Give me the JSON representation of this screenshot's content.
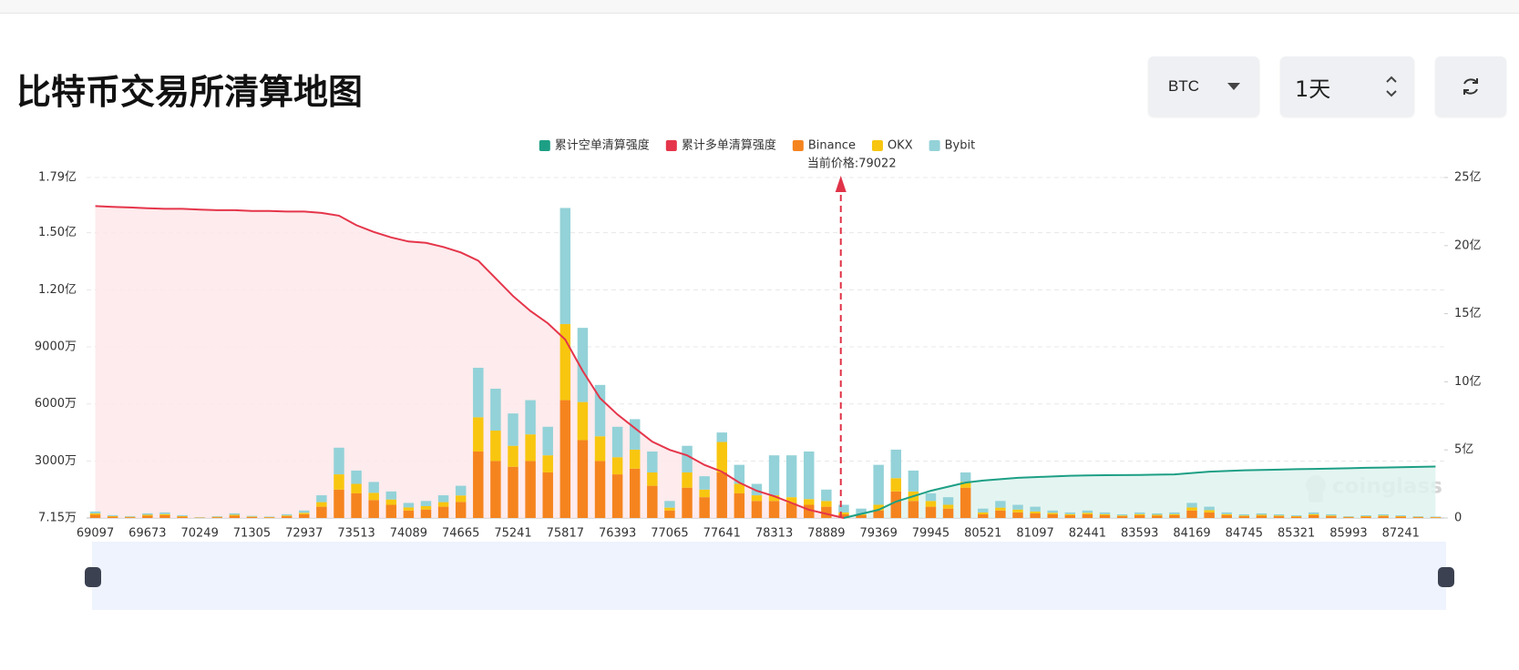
{
  "header": {
    "title": "比特币交易所清算地图"
  },
  "controls": {
    "coin": "BTC",
    "period": "1天"
  },
  "chart_data": {
    "type": "bar",
    "stacked": true,
    "watermark": "coinglass",
    "annotation": {
      "text": "当前价格:79022",
      "x": 79022,
      "color": "#e03347"
    },
    "grid": true,
    "ylim": [
      7.15,
      17900
    ],
    "yticks": [
      {
        "value": 7.15,
        "label": "7.15万"
      },
      {
        "value": 3000,
        "label": "3000万"
      },
      {
        "value": 6000,
        "label": "6000万"
      },
      {
        "value": 9000,
        "label": "9000万"
      },
      {
        "value": 12000,
        "label": "1.20亿"
      },
      {
        "value": 15000,
        "label": "1.50亿"
      },
      {
        "value": 17900,
        "label": "1.79亿"
      }
    ],
    "y2lim": [
      0,
      25
    ],
    "y2ticks": [
      0,
      {
        "value": 5,
        "label": "5亿"
      },
      {
        "value": 10,
        "label": "10亿"
      },
      {
        "value": 15,
        "label": "15亿"
      },
      {
        "value": 20,
        "label": "20亿"
      },
      {
        "value": 25,
        "label": "25亿"
      }
    ],
    "categories": [
      "69097",
      null,
      null,
      "69673",
      null,
      null,
      "70249",
      null,
      null,
      "71305",
      null,
      null,
      "72937",
      null,
      null,
      "73513",
      null,
      null,
      "74089",
      null,
      null,
      "74665",
      null,
      null,
      "75241",
      null,
      null,
      "75817",
      null,
      null,
      "76393",
      null,
      null,
      "77065",
      null,
      null,
      "77641",
      null,
      null,
      "78313",
      null,
      null,
      "78889",
      null,
      null,
      "79369",
      null,
      null,
      "79945",
      null,
      null,
      "80521",
      null,
      null,
      "81097",
      null,
      null,
      "82441",
      null,
      null,
      "83593",
      null,
      null,
      "84169",
      null,
      null,
      "84745",
      null,
      null,
      "85321",
      null,
      null,
      "85993",
      null,
      null,
      "87241",
      null,
      null
    ],
    "series": [
      {
        "name": "累计空单清算强度",
        "type": "line",
        "axis": "y2",
        "color": "#1d9f85",
        "area": "#dff3ee",
        "values": [
          null,
          null,
          null,
          null,
          null,
          null,
          null,
          null,
          null,
          null,
          null,
          null,
          null,
          null,
          null,
          null,
          null,
          null,
          null,
          null,
          null,
          null,
          null,
          null,
          null,
          null,
          null,
          null,
          null,
          null,
          null,
          null,
          null,
          null,
          null,
          null,
          null,
          null,
          null,
          null,
          null,
          null,
          null,
          0,
          0.3,
          0.6,
          1.2,
          1.6,
          2.0,
          2.3,
          2.6,
          2.75,
          2.85,
          2.95,
          3.0,
          3.05,
          3.1,
          3.12,
          3.14,
          3.15,
          3.16,
          3.18,
          3.2,
          3.3,
          3.4,
          3.45,
          3.5,
          3.52,
          3.55,
          3.58,
          3.6,
          3.62,
          3.65,
          3.68,
          3.7,
          3.72,
          3.75,
          3.78
        ]
      },
      {
        "name": "累计多单清算强度",
        "type": "line",
        "axis": "y2",
        "color": "#e5354a",
        "area": "#fde8ea",
        "values": [
          22.9,
          22.85,
          22.8,
          22.75,
          22.7,
          22.7,
          22.65,
          22.6,
          22.6,
          22.55,
          22.55,
          22.5,
          22.5,
          22.4,
          22.2,
          21.5,
          21.0,
          20.6,
          20.3,
          20.2,
          19.9,
          19.5,
          18.9,
          17.6,
          16.3,
          15.2,
          14.3,
          13.1,
          10.8,
          8.8,
          7.6,
          6.6,
          5.6,
          5.0,
          4.6,
          3.9,
          3.4,
          2.6,
          2.0,
          1.6,
          1.1,
          0.6,
          0.3,
          0,
          null,
          null,
          null,
          null,
          null,
          null,
          null,
          null,
          null,
          null,
          null,
          null,
          null,
          null,
          null,
          null,
          null,
          null,
          null,
          null,
          null,
          null,
          null,
          null,
          null,
          null,
          null,
          null,
          null,
          null,
          null,
          null,
          null,
          null
        ]
      },
      {
        "name": "Binance",
        "type": "bar",
        "color": "#f5841f",
        "values": [
          175,
          75,
          50,
          125,
          150,
          75,
          25,
          50,
          125,
          60,
          40,
          100,
          200,
          600,
          1500,
          1300,
          950,
          700,
          400,
          450,
          600,
          850,
          3500,
          3000,
          2700,
          3000,
          2400,
          6200,
          4100,
          3000,
          2300,
          2600,
          1700,
          400,
          1600,
          1100,
          2400,
          1300,
          900,
          900,
          800,
          700,
          600,
          200,
          150,
          400,
          1400,
          900,
          600,
          500,
          1600,
          200,
          400,
          300,
          250,
          200,
          150,
          200,
          150,
          100,
          150,
          125,
          150,
          400,
          300,
          150,
          100,
          125,
          100,
          75,
          150,
          100,
          50,
          75,
          100,
          75,
          50,
          40
        ]
      },
      {
        "name": "OKX",
        "type": "bar",
        "color": "#f8c60f",
        "values": [
          70,
          30,
          20,
          50,
          60,
          30,
          10,
          20,
          50,
          24,
          16,
          40,
          80,
          240,
          800,
          500,
          380,
          280,
          160,
          180,
          240,
          340,
          1800,
          1600,
          1100,
          1400,
          900,
          4000,
          2000,
          1300,
          900,
          1000,
          700,
          150,
          800,
          400,
          1600,
          500,
          300,
          300,
          300,
          300,
          300,
          100,
          50,
          300,
          700,
          500,
          300,
          200,
          300,
          100,
          150,
          150,
          100,
          80,
          60,
          80,
          60,
          40,
          60,
          50,
          60,
          160,
          120,
          60,
          40,
          50,
          40,
          30,
          60,
          40,
          20,
          30,
          40,
          30,
          20,
          16
        ]
      },
      {
        "name": "Bybit",
        "type": "bar",
        "color": "#93d2d8",
        "values": [
          105,
          45,
          30,
          75,
          90,
          45,
          15,
          30,
          75,
          36,
          24,
          60,
          120,
          360,
          1400,
          700,
          570,
          420,
          240,
          270,
          360,
          510,
          2600,
          2200,
          1700,
          1800,
          1500,
          6100,
          3900,
          2700,
          1600,
          1600,
          1100,
          350,
          1400,
          700,
          500,
          1000,
          600,
          2100,
          2200,
          2500,
          600,
          400,
          300,
          2100,
          1500,
          1100,
          400,
          400,
          500,
          200,
          350,
          250,
          250,
          120,
          90,
          120,
          90,
          60,
          90,
          75,
          90,
          240,
          180,
          90,
          60,
          75,
          60,
          45,
          90,
          60,
          30,
          45,
          60,
          45,
          30,
          24
        ]
      }
    ]
  }
}
